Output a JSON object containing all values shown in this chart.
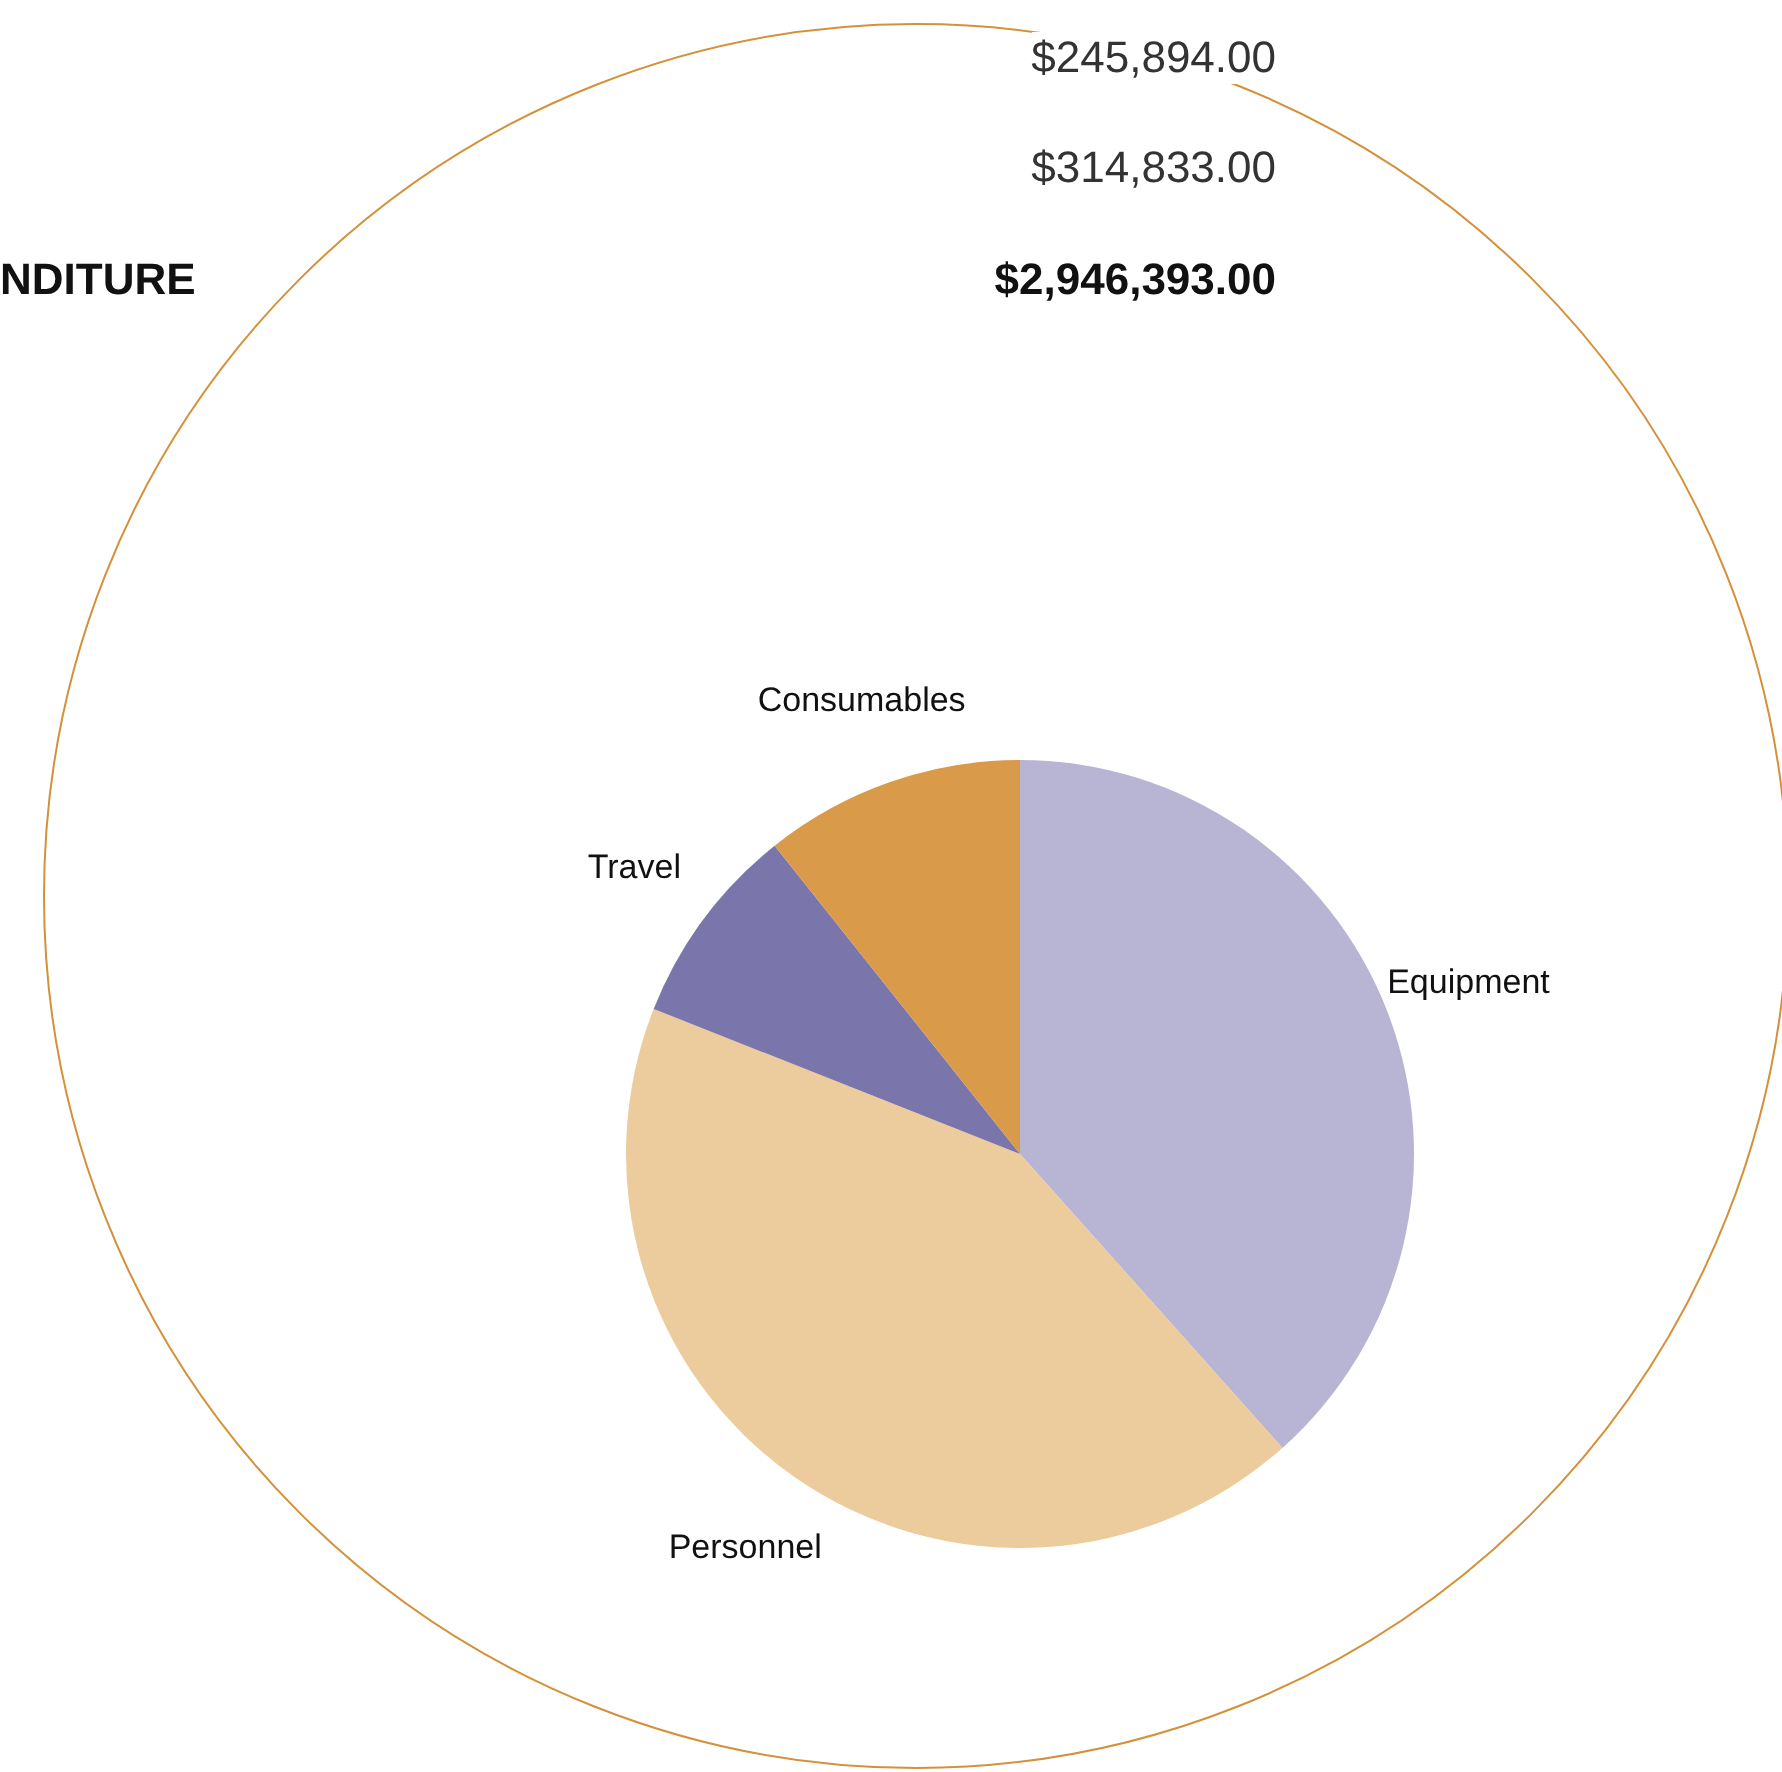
{
  "chart_data": {
    "type": "pie",
    "categories": [
      "Equipment",
      "Personnel",
      "Travel",
      "Consumables"
    ],
    "values": [
      38.4,
      42.6,
      8.3,
      10.7
    ],
    "colors": [
      "#b8b4d4",
      "#eccc9c",
      "#7a76ab",
      "#d99a4a"
    ],
    "annotations": [
      "$245,894.00",
      "$314,833.00",
      "NDITURE",
      "$2,946,393.00"
    ]
  }
}
